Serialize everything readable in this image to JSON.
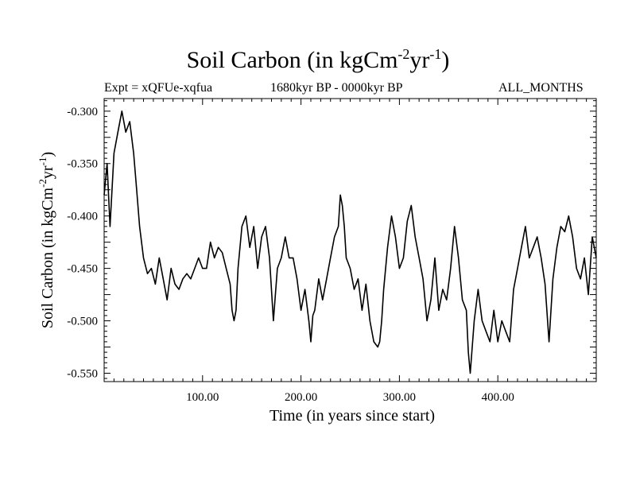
{
  "chart_data": {
    "type": "line",
    "title": "Soil Carbon (in kgCm",
    "title_exp1": "-2",
    "title_mid": "yr",
    "title_exp2": "-1",
    "title_end": ")",
    "subtitle_left": "Expt = xQFUe-xqfua",
    "subtitle_center": "1680kyr BP - 0000kyr BP",
    "subtitle_right": "ALL_MONTHS",
    "xlabel": "Time (in years since start)",
    "ylabel": "Soil Carbon (in kgCm",
    "ylabel_exp1": "-2",
    "ylabel_mid": "yr",
    "ylabel_exp2": "-1",
    "ylabel_end": ")",
    "xlim": [
      0,
      500
    ],
    "ylim": [
      -0.558,
      -0.288
    ],
    "x_ticks": [
      100,
      200,
      300,
      400
    ],
    "x_tick_labels": [
      "100.00",
      "200.00",
      "300.00",
      "400.00"
    ],
    "y_ticks": [
      -0.3,
      -0.35,
      -0.4,
      -0.45,
      -0.5,
      -0.55
    ],
    "y_tick_labels": [
      "-0.300",
      "-0.350",
      "-0.400",
      "-0.450",
      "-0.500",
      "-0.550"
    ],
    "series": [
      {
        "name": "Soil Carbon",
        "color": "#000000",
        "x": [
          0,
          3,
          6,
          10,
          14,
          18,
          22,
          26,
          30,
          33,
          36,
          40,
          44,
          48,
          52,
          56,
          60,
          64,
          68,
          72,
          76,
          80,
          84,
          88,
          92,
          96,
          100,
          104,
          108,
          112,
          116,
          120,
          124,
          128,
          130,
          132,
          134,
          136,
          140,
          144,
          148,
          152,
          156,
          160,
          164,
          168,
          172,
          176,
          180,
          184,
          188,
          192,
          196,
          200,
          204,
          208,
          210,
          212,
          214,
          218,
          222,
          226,
          230,
          234,
          238,
          240,
          242,
          244,
          246,
          250,
          254,
          258,
          262,
          266,
          270,
          274,
          278,
          280,
          282,
          284,
          288,
          292,
          296,
          300,
          304,
          308,
          312,
          316,
          320,
          324,
          328,
          332,
          336,
          340,
          344,
          348,
          352,
          356,
          360,
          364,
          368,
          370,
          372,
          376,
          380,
          384,
          388,
          392,
          396,
          400,
          404,
          408,
          412,
          416,
          420,
          424,
          428,
          432,
          436,
          440,
          444,
          448,
          452,
          456,
          460,
          464,
          468,
          472,
          476,
          480,
          484,
          488,
          492,
          496,
          500
        ],
        "y": [
          -0.38,
          -0.35,
          -0.41,
          -0.34,
          -0.32,
          -0.3,
          -0.32,
          -0.31,
          -0.34,
          -0.375,
          -0.41,
          -0.44,
          -0.455,
          -0.45,
          -0.465,
          -0.44,
          -0.46,
          -0.48,
          -0.45,
          -0.465,
          -0.47,
          -0.46,
          -0.455,
          -0.46,
          -0.45,
          -0.44,
          -0.45,
          -0.45,
          -0.425,
          -0.44,
          -0.43,
          -0.435,
          -0.45,
          -0.465,
          -0.49,
          -0.5,
          -0.49,
          -0.45,
          -0.41,
          -0.4,
          -0.43,
          -0.41,
          -0.45,
          -0.42,
          -0.41,
          -0.44,
          -0.5,
          -0.45,
          -0.44,
          -0.42,
          -0.44,
          -0.44,
          -0.46,
          -0.49,
          -0.47,
          -0.5,
          -0.52,
          -0.495,
          -0.49,
          -0.46,
          -0.48,
          -0.46,
          -0.44,
          -0.42,
          -0.41,
          -0.38,
          -0.39,
          -0.41,
          -0.44,
          -0.45,
          -0.47,
          -0.46,
          -0.49,
          -0.465,
          -0.5,
          -0.52,
          -0.525,
          -0.52,
          -0.5,
          -0.47,
          -0.43,
          -0.4,
          -0.42,
          -0.45,
          -0.44,
          -0.405,
          -0.39,
          -0.42,
          -0.44,
          -0.46,
          -0.5,
          -0.48,
          -0.44,
          -0.49,
          -0.47,
          -0.48,
          -0.45,
          -0.41,
          -0.44,
          -0.48,
          -0.49,
          -0.53,
          -0.55,
          -0.5,
          -0.47,
          -0.5,
          -0.51,
          -0.52,
          -0.49,
          -0.52,
          -0.5,
          -0.51,
          -0.52,
          -0.47,
          -0.45,
          -0.43,
          -0.41,
          -0.44,
          -0.43,
          -0.42,
          -0.44,
          -0.465,
          -0.52,
          -0.46,
          -0.43,
          -0.41,
          -0.415,
          -0.4,
          -0.42,
          -0.45,
          -0.46,
          -0.44,
          -0.475,
          -0.42,
          -0.44
        ]
      }
    ]
  }
}
